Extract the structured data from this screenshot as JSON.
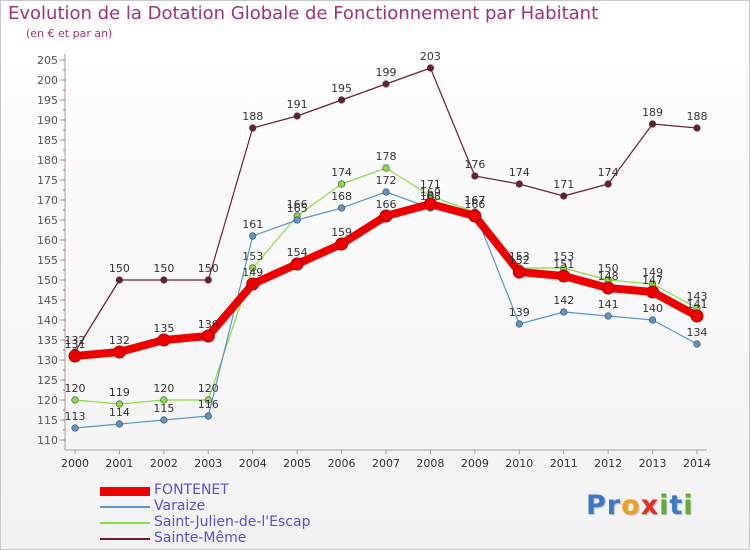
{
  "chart_data": {
    "type": "line",
    "title": "Evolution de la Dotation Globale de Fonctionnement par Habitant",
    "subtitle": "(en € et par an)",
    "xlabel": "",
    "ylabel": "",
    "categories": [
      "2000",
      "2001",
      "2002",
      "2003",
      "2004",
      "2005",
      "2006",
      "2007",
      "2008",
      "2009",
      "2010",
      "2011",
      "2012",
      "2013",
      "2014"
    ],
    "ylim": [
      110,
      205
    ],
    "yticks": [
      110,
      115,
      120,
      125,
      130,
      135,
      140,
      145,
      150,
      155,
      160,
      165,
      170,
      175,
      180,
      185,
      190,
      195,
      200,
      205
    ],
    "grid": false,
    "legend_position": "bottom-left",
    "series": [
      {
        "name": "Sainte-Même",
        "color": "#6e1e28",
        "values": [
          132,
          150,
          150,
          150,
          188,
          191,
          195,
          199,
          203,
          176,
          174,
          171,
          174,
          189,
          188
        ]
      },
      {
        "name": "Saint-Julien-de-l'Escap",
        "color": "#88dc44",
        "values": [
          120,
          119,
          120,
          120,
          153,
          166,
          174,
          178,
          171,
          167,
          153,
          153,
          150,
          149,
          143
        ]
      },
      {
        "name": "Varaize",
        "color": "#5a96c8",
        "values": [
          113,
          114,
          115,
          116,
          161,
          165,
          168,
          172,
          168,
          167,
          139,
          142,
          141,
          140,
          134
        ]
      },
      {
        "name": "FONTENET",
        "color": "#ee0000",
        "values": [
          131,
          132,
          135,
          136,
          149,
          154,
          159,
          166,
          169,
          166,
          152,
          151,
          148,
          147,
          141
        ]
      }
    ]
  },
  "legend": {
    "items": [
      {
        "label": "FONTENET",
        "color": "#ee0000"
      },
      {
        "label": "Varaize",
        "color": "#5a96c8"
      },
      {
        "label": "Saint-Julien-de-l'Escap",
        "color": "#88dc44"
      },
      {
        "label": "Sainte-Même",
        "color": "#6e1e28"
      }
    ]
  },
  "logo": {
    "letters": [
      "P",
      "r",
      "o",
      "x",
      "i",
      "t",
      "i"
    ],
    "colors": [
      "#3a78c8",
      "#3a78c8",
      "#f0a020",
      "#e03020",
      "#60b030",
      "#3a78c8",
      "#60b030"
    ]
  }
}
